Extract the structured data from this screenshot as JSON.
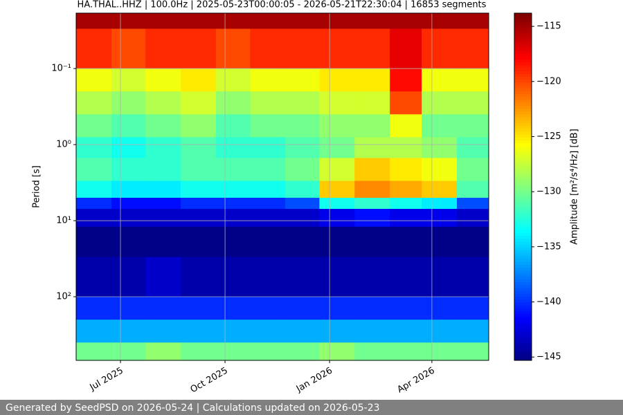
{
  "chart_data": {
    "type": "heatmap",
    "title": "HA.THAL..HHZ | 100.0Hz | 2025-05-23T00:00:05 - 2026-05-21T22:30:04 | 16853 segments",
    "y_label": "Period [s]",
    "colorbar_label": "Amplitude [m²/s⁴/Hz] [dB]",
    "colormap": "jet",
    "grid": true,
    "log_y": true,
    "xlim": [
      "2025-05-23",
      "2026-05-21"
    ],
    "xticks": [
      {
        "value": "2025-07-01",
        "label": "Jul 2025"
      },
      {
        "value": "2025-10-01",
        "label": "Oct 2025"
      },
      {
        "value": "2026-01-01",
        "label": "Jan 2026"
      },
      {
        "value": "2026-04-01",
        "label": "Apr 2026"
      }
    ],
    "ylim": [
      0.0187,
      686
    ],
    "yticks": [
      {
        "value": 0.1,
        "label": "10⁻¹"
      },
      {
        "value": 1,
        "label": "10⁰"
      },
      {
        "value": 10,
        "label": "10¹"
      },
      {
        "value": 100,
        "label": "10²"
      }
    ],
    "zlim": [
      -145.3,
      -113.8
    ],
    "zticks": [
      {
        "value": -115,
        "label": "−115"
      },
      {
        "value": -120,
        "label": "−120"
      },
      {
        "value": -125,
        "label": "−125"
      },
      {
        "value": -130,
        "label": "−130"
      },
      {
        "value": -135,
        "label": "−135"
      },
      {
        "value": -140,
        "label": "−140"
      },
      {
        "value": -145,
        "label": "−145"
      }
    ],
    "x": [
      "2025-05-23",
      "2025-06-23",
      "2025-07-23",
      "2025-08-23",
      "2025-09-23",
      "2025-10-23",
      "2025-11-23",
      "2025-12-23",
      "2026-01-23",
      "2026-02-23",
      "2026-03-23",
      "2026-04-23"
    ],
    "y_edges": [
      0.0187,
      0.03,
      0.1,
      0.2,
      0.4,
      0.8,
      1.5,
      3,
      5,
      7,
      12,
      30,
      100,
      200,
      400,
      686
    ],
    "z": [
      [
        -115,
        -115,
        -115,
        -115,
        -115,
        -115,
        -115,
        -115,
        -115,
        -115,
        -115,
        -115
      ],
      [
        -119,
        -120,
        -119,
        -119,
        -120,
        -119,
        -119,
        -119,
        -119,
        -117,
        -119,
        -119
      ],
      [
        -126,
        -127,
        -126,
        -125,
        -127,
        -126,
        -126,
        -125,
        -125,
        -118,
        -126,
        -126
      ],
      [
        -128,
        -129,
        -128,
        -127,
        -129,
        -128,
        -128,
        -127,
        -127,
        -120,
        -128,
        -128
      ],
      [
        -130,
        -131,
        -130,
        -129,
        -131,
        -130,
        -130,
        -129,
        -129,
        -126,
        -130,
        -130
      ],
      [
        -132,
        -133,
        -132,
        -131,
        -132,
        -132,
        -131,
        -130,
        -128,
        -128,
        -129,
        -131
      ],
      [
        -131,
        -132,
        -132,
        -131,
        -131,
        -131,
        -130,
        -127,
        -124,
        -125,
        -126,
        -130
      ],
      [
        -133,
        -134,
        -134,
        -133,
        -133,
        -133,
        -132,
        -124,
        -122,
        -123,
        -124,
        -131
      ],
      [
        -140,
        -141,
        -141,
        -140,
        -140,
        -140,
        -139,
        -133,
        -132,
        -133,
        -134,
        -139
      ],
      [
        -143,
        -143,
        -143,
        -143,
        -143,
        -143,
        -143,
        -142,
        -141,
        -142,
        -142,
        -143
      ],
      [
        -145,
        -145,
        -145,
        -145,
        -145,
        -145,
        -145,
        -145,
        -145,
        -145,
        -145,
        -145
      ],
      [
        -144,
        -144,
        -143,
        -144,
        -144,
        -144,
        -144,
        -144,
        -144,
        -144,
        -144,
        -144
      ],
      [
        -140,
        -140,
        -140,
        -140,
        -140,
        -140,
        -140,
        -140,
        -140,
        -140,
        -140,
        -140
      ],
      [
        -136,
        -136,
        -136,
        -136,
        -136,
        -136,
        -136,
        -136,
        -136,
        -136,
        -136,
        -136
      ],
      [
        -130,
        -130,
        -129,
        -130,
        -130,
        -130,
        -130,
        -129,
        -130,
        -130,
        -130,
        -130
      ]
    ]
  },
  "footer": "Generated by SeedPSD on 2026-05-24 | Calculations updated on 2026-05-23"
}
